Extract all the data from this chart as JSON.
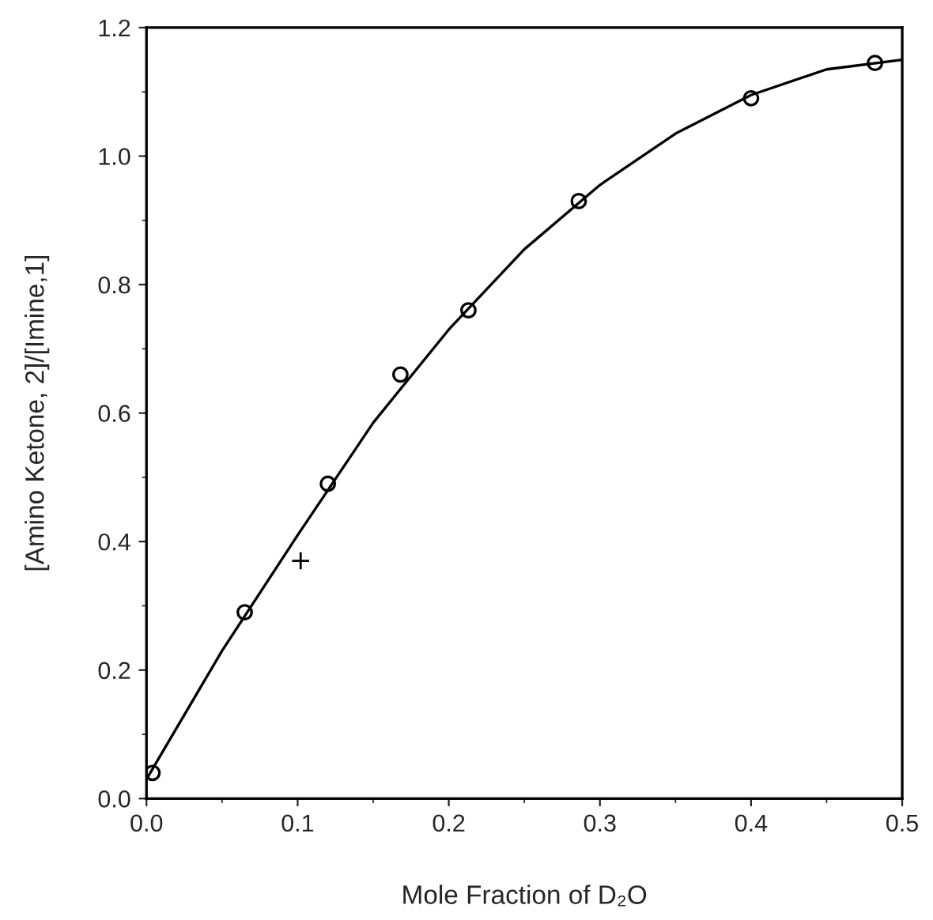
{
  "chart_data": {
    "type": "scatter",
    "xlabel": "Mole Fraction of D₂O",
    "ylabel": "[Amino Ketone, 2]/[Imine,1]",
    "xlim": [
      0,
      0.5
    ],
    "ylim": [
      0,
      1.2
    ],
    "xticks": [
      {
        "value": 0,
        "label": "0.0"
      },
      {
        "value": 0.1,
        "label": "0.1"
      },
      {
        "value": 0.2,
        "label": "0.2"
      },
      {
        "value": 0.3,
        "label": "0.3"
      },
      {
        "value": 0.4,
        "label": "0.4"
      },
      {
        "value": 0.5,
        "label": "0.5"
      }
    ],
    "yticks": [
      {
        "value": 0,
        "label": "0.0"
      },
      {
        "value": 0.2,
        "label": "0.2"
      },
      {
        "value": 0.4,
        "label": "0.4"
      },
      {
        "value": 0.6,
        "label": "0.6"
      },
      {
        "value": 0.8,
        "label": "0.8"
      },
      {
        "value": 1.0,
        "label": "1.0"
      },
      {
        "value": 1.2,
        "label": "1.2"
      }
    ],
    "grid": false,
    "legend": false,
    "series": [
      {
        "type": "line",
        "color": "#000000",
        "marker": "none",
        "line_style": "solid",
        "x": [
          0,
          0.05,
          0.1,
          0.15,
          0.2,
          0.25,
          0.3,
          0.35,
          0.4,
          0.45,
          0.5
        ],
        "values": [
          0.03,
          0.23,
          0.41,
          0.585,
          0.73,
          0.855,
          0.955,
          1.035,
          1.095,
          1.135,
          1.15
        ]
      },
      {
        "color": "#000000",
        "marker": "circle",
        "x": [
          0.004,
          0.065,
          0.12,
          0.168,
          0.213,
          0.286,
          0.4,
          0.482
        ],
        "values": [
          0.04,
          0.29,
          0.49,
          0.66,
          0.76,
          0.93,
          1.09,
          1.145
        ]
      },
      {
        "color": "#000000",
        "marker": "cross",
        "x": [
          0.102
        ],
        "values": [
          0.37
        ]
      }
    ]
  }
}
